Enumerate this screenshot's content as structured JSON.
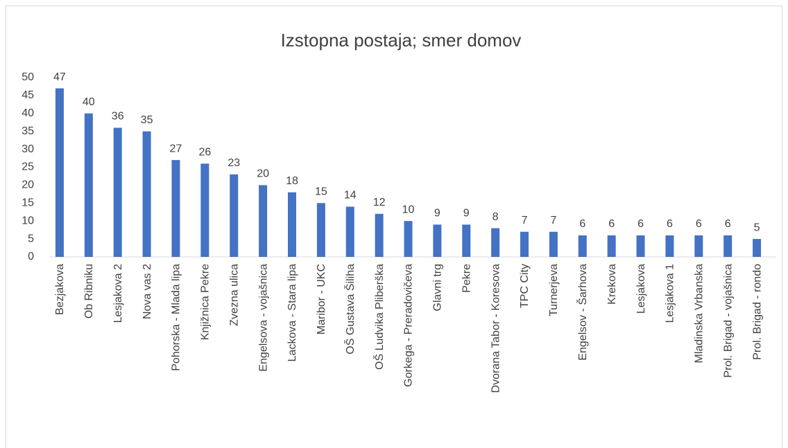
{
  "chart_data": {
    "type": "bar",
    "title": "Izstopna postaja; smer domov",
    "categories": [
      "Bezjakova",
      "Ob Ribniku",
      "Lesjakova 2",
      "Nova vas 2",
      "Pohorska - Mlada lipa",
      "Knjižnica Pekre",
      "Zvezna ulica",
      "Engelsova - vojašnica",
      "Lackova - Stara lipa",
      "Maribor - UKC",
      "OŠ Gustava Šiliha",
      "OŠ Ludvika Pliberška",
      "Gorkega - Preradovičeva",
      "Glavni trg",
      "Pekre",
      "Dvorana Tabor - Koresova",
      "TPC City",
      "Turnerjeva",
      "Engelsov - Šarhova",
      "Krekova",
      "Lesjakova",
      "Lesjakova 1",
      "Mladinska Vrbanska",
      "Prol. Brigad - vojašnica",
      "Prol. Brigad - rondo"
    ],
    "values": [
      47,
      40,
      36,
      35,
      27,
      26,
      23,
      20,
      18,
      15,
      14,
      12,
      10,
      9,
      9,
      8,
      7,
      7,
      6,
      6,
      6,
      6,
      6,
      6,
      5
    ],
    "color": "#4472c4",
    "ylim": [
      0,
      50
    ],
    "yticks": [
      0,
      5,
      10,
      15,
      20,
      25,
      30,
      35,
      40,
      45,
      50
    ],
    "grid": false
  }
}
